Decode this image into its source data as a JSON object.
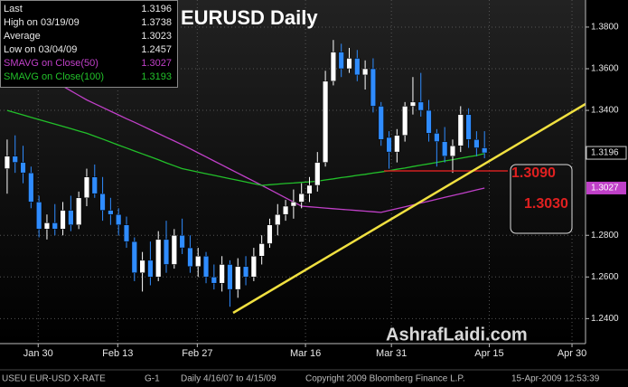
{
  "chart_data": {
    "type": "candlestick",
    "title": "EURUSD Daily",
    "categories": [
      null,
      null,
      null,
      null,
      null,
      null,
      null,
      null,
      null,
      null,
      null,
      null,
      null,
      null,
      null,
      null,
      null,
      null,
      null,
      null,
      null,
      null,
      null,
      null,
      null,
      null,
      null,
      null,
      null,
      null,
      null,
      null,
      null,
      null,
      null,
      null,
      null,
      null,
      null,
      null,
      null,
      null,
      null,
      null,
      null,
      null,
      null,
      null,
      null,
      null,
      null,
      null,
      null,
      null,
      null,
      null,
      null,
      null,
      null,
      null,
      null
    ],
    "open": [
      1.312,
      1.318,
      1.315,
      1.31,
      1.296,
      1.283,
      1.286,
      1.283,
      1.292,
      1.285,
      1.298,
      1.308,
      1.3,
      1.292,
      1.29,
      1.285,
      1.277,
      1.262,
      1.268,
      1.26,
      1.278,
      1.266,
      1.28,
      1.274,
      1.265,
      1.27,
      1.26,
      1.257,
      1.266,
      1.254,
      1.265,
      1.26,
      1.27,
      1.276,
      1.285,
      1.29,
      1.294,
      1.296,
      1.3,
      1.304,
      1.315,
      1.354,
      1.368,
      1.36,
      1.365,
      1.357,
      1.36,
      1.342,
      1.327,
      1.32,
      1.328,
      1.342,
      1.344,
      1.34,
      1.329,
      1.325,
      1.318,
      1.323,
      1.338,
      1.326,
      1.322
    ],
    "high": [
      1.326,
      1.328,
      1.323,
      1.313,
      1.299,
      1.29,
      1.295,
      1.296,
      1.299,
      1.301,
      1.312,
      1.314,
      1.308,
      1.298,
      1.293,
      1.289,
      1.279,
      1.272,
      1.277,
      1.282,
      1.287,
      1.283,
      1.288,
      1.28,
      1.274,
      1.272,
      1.266,
      1.27,
      1.268,
      1.269,
      1.27,
      1.274,
      1.28,
      1.288,
      1.295,
      1.297,
      1.302,
      1.305,
      1.308,
      1.32,
      1.359,
      1.3738,
      1.372,
      1.37,
      1.369,
      1.364,
      1.365,
      1.344,
      1.33,
      1.331,
      1.344,
      1.356,
      1.358,
      1.345,
      1.331,
      1.332,
      1.326,
      1.342,
      1.341,
      1.33,
      1.33
    ],
    "low": [
      1.3,
      1.31,
      1.305,
      1.293,
      1.279,
      1.278,
      1.28,
      1.28,
      1.282,
      1.283,
      1.294,
      1.298,
      1.287,
      1.285,
      1.28,
      1.274,
      1.258,
      1.253,
      1.256,
      1.258,
      1.262,
      1.264,
      1.271,
      1.262,
      1.26,
      1.257,
      1.254,
      1.253,
      1.2457,
      1.25,
      1.256,
      1.258,
      1.266,
      1.274,
      1.28,
      1.287,
      1.288,
      1.293,
      1.296,
      1.301,
      1.313,
      1.352,
      1.356,
      1.358,
      1.354,
      1.35,
      1.339,
      1.323,
      1.312,
      1.315,
      1.325,
      1.338,
      1.337,
      1.325,
      1.313,
      1.315,
      1.31,
      1.32,
      1.322,
      1.318,
      1.317
    ],
    "close": [
      1.318,
      1.315,
      1.31,
      1.296,
      1.283,
      1.286,
      1.283,
      1.292,
      1.285,
      1.298,
      1.308,
      1.3,
      1.292,
      1.29,
      1.285,
      1.277,
      1.262,
      1.268,
      1.26,
      1.278,
      1.266,
      1.28,
      1.274,
      1.265,
      1.27,
      1.26,
      1.257,
      1.266,
      1.254,
      1.265,
      1.26,
      1.27,
      1.276,
      1.285,
      1.29,
      1.294,
      1.296,
      1.3,
      1.304,
      1.315,
      1.354,
      1.368,
      1.36,
      1.365,
      1.357,
      1.36,
      1.342,
      1.326,
      1.32,
      1.328,
      1.342,
      1.344,
      1.34,
      1.329,
      1.325,
      1.318,
      1.323,
      1.338,
      1.326,
      1.322,
      1.3196
    ],
    "up_color": "#ffffff",
    "down_color": "#2f8cff",
    "series": [
      {
        "name": "SMAVG on Close(50)",
        "color": "#c040c8",
        "last": 1.3027,
        "values": [
          1.369,
          1.3664,
          1.3638,
          1.3612,
          1.3586,
          1.356,
          1.3538,
          1.3516,
          1.3494,
          1.3472,
          1.345,
          1.3432,
          1.3414,
          1.3396,
          1.3378,
          1.336,
          1.3343,
          1.3325,
          1.3307,
          1.3289,
          1.3271,
          1.3253,
          1.3235,
          1.3216,
          1.3196,
          1.3177,
          1.3157,
          1.3138,
          1.3118,
          1.3099,
          1.3079,
          1.306,
          1.304,
          1.302,
          1.3,
          1.298,
          1.296,
          1.294,
          1.2937,
          1.2934,
          1.2931,
          1.2928,
          1.2925,
          1.2922,
          1.2919,
          1.2916,
          1.2913,
          1.291,
          1.2919,
          1.2928,
          1.2937,
          1.2946,
          1.2955,
          1.2964,
          1.2973,
          1.2982,
          1.2991,
          1.3,
          1.3009,
          1.3018,
          1.3027
        ]
      },
      {
        "name": "SMAVG on Close(100)",
        "color": "#22c02a",
        "last": 1.3193,
        "values": [
          1.34,
          1.3389,
          1.3378,
          1.3367,
          1.3356,
          1.3345,
          1.3334,
          1.3323,
          1.3312,
          1.3301,
          1.329,
          1.3276,
          1.3262,
          1.3248,
          1.3233,
          1.3219,
          1.3205,
          1.3191,
          1.3177,
          1.3163,
          1.3148,
          1.3134,
          1.312,
          1.3112,
          1.3104,
          1.3096,
          1.3088,
          1.308,
          1.3072,
          1.3064,
          1.3056,
          1.3048,
          1.304,
          1.3043,
          1.3046,
          1.3049,
          1.3051,
          1.3054,
          1.3057,
          1.306,
          1.3066,
          1.3071,
          1.3077,
          1.3082,
          1.3088,
          1.3093,
          1.3099,
          1.3104,
          1.311,
          1.3117,
          1.3123,
          1.313,
          1.3137,
          1.3143,
          1.315,
          1.3157,
          1.3163,
          1.317,
          1.3177,
          1.3183,
          1.3193
        ]
      }
    ],
    "info": [
      {
        "label": "Last",
        "value": "1.3196"
      },
      {
        "label": "High on  03/19/09",
        "value": "1.3738"
      },
      {
        "label": "Average",
        "value": "1.3023"
      },
      {
        "label": "Low on  03/04/09",
        "value": "1.2457"
      }
    ],
    "sma_labels": [
      "1.3027",
      "1.3193"
    ],
    "ylim": [
      1.228,
      1.393
    ],
    "yticks": [
      {
        "value": 1.38,
        "label": "1.3800"
      },
      {
        "value": 1.36,
        "label": "1.3600"
      },
      {
        "value": 1.34,
        "label": "1.3400"
      },
      {
        "value": 1.28,
        "label": "1.2800"
      },
      {
        "value": 1.26,
        "label": "1.2600"
      },
      {
        "value": 1.24,
        "label": "1.2400"
      }
    ],
    "xlim": [
      -0.9,
      72.7
    ],
    "xticks": [
      {
        "value": 3.9,
        "label": "Jan 30"
      },
      {
        "value": 13.9,
        "label": "Feb 13"
      },
      {
        "value": 23.9,
        "label": "Feb 27"
      },
      {
        "value": 37.5,
        "label": "Mar 16"
      },
      {
        "value": 48.3,
        "label": "Mar 31"
      },
      {
        "value": 60.6,
        "label": "Apr 15"
      },
      {
        "value": 71,
        "label": "Apr 30"
      }
    ],
    "grid": true,
    "annotations": [
      "1.3090",
      "1.3030"
    ],
    "watermark": "AshrafLaidi.com"
  },
  "footer": [
    "USEU  EUR-USD X-RATE",
    "G-1",
    "Daily  4/16/07 to 4/15/09",
    "Copyright 2009 Bloomberg Finance L.P.",
    "15-Apr-2009 12:53:39"
  ]
}
